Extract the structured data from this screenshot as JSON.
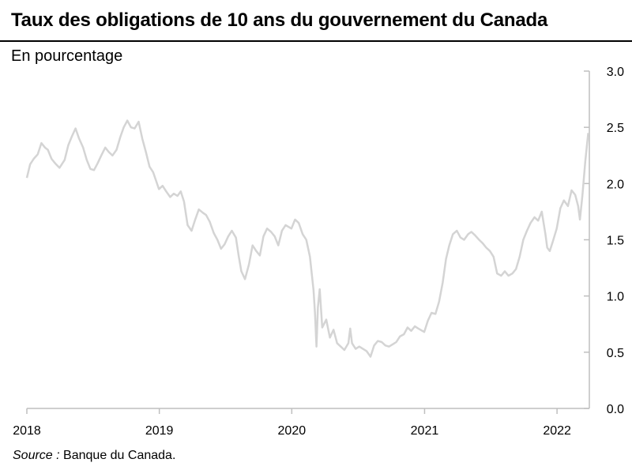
{
  "title": "Taux des obligations de 10 ans du gouvernement du Canada",
  "ylabel": "En pourcentage",
  "source_label": "Source :",
  "source_text": "Banque du Canada.",
  "colors": {
    "line": "#d4d4d4",
    "axis": "#bfbfbf",
    "text": "#000000"
  },
  "chart_data": {
    "type": "line",
    "title": "Taux des obligations de 10 ans du gouvernement du Canada",
    "ylabel": "En pourcentage",
    "xlabel": "",
    "x_ticks": [
      "2018",
      "2019",
      "2020",
      "2021",
      "2022"
    ],
    "y_ticks": [
      "3.0",
      "2.5",
      "2.0",
      "1.5",
      "1.0",
      "0.5",
      "0.0"
    ],
    "xlim": [
      "2018-01-01",
      "2022-03-31"
    ],
    "ylim": [
      0,
      3
    ],
    "y_axis_side": "right",
    "grid": false,
    "legend": "none",
    "series": [
      {
        "values": [
          [
            "2018-01-01",
            2.05
          ],
          [
            "2018-01-10",
            2.17
          ],
          [
            "2018-01-20",
            2.22
          ],
          [
            "2018-01-31",
            2.26
          ],
          [
            "2018-02-10",
            2.36
          ],
          [
            "2018-02-20",
            2.32
          ],
          [
            "2018-02-28",
            2.3
          ],
          [
            "2018-03-10",
            2.22
          ],
          [
            "2018-03-20",
            2.18
          ],
          [
            "2018-04-01",
            2.14
          ],
          [
            "2018-04-15",
            2.21
          ],
          [
            "2018-04-25",
            2.34
          ],
          [
            "2018-05-05",
            2.42
          ],
          [
            "2018-05-15",
            2.49
          ],
          [
            "2018-05-25",
            2.4
          ],
          [
            "2018-06-05",
            2.32
          ],
          [
            "2018-06-15",
            2.21
          ],
          [
            "2018-06-25",
            2.13
          ],
          [
            "2018-07-05",
            2.12
          ],
          [
            "2018-07-15",
            2.18
          ],
          [
            "2018-07-25",
            2.25
          ],
          [
            "2018-08-05",
            2.32
          ],
          [
            "2018-08-15",
            2.28
          ],
          [
            "2018-08-25",
            2.25
          ],
          [
            "2018-09-05",
            2.3
          ],
          [
            "2018-09-15",
            2.41
          ],
          [
            "2018-09-25",
            2.5
          ],
          [
            "2018-10-05",
            2.56
          ],
          [
            "2018-10-15",
            2.5
          ],
          [
            "2018-10-25",
            2.49
          ],
          [
            "2018-11-05",
            2.55
          ],
          [
            "2018-11-15",
            2.4
          ],
          [
            "2018-11-25",
            2.28
          ],
          [
            "2018-12-05",
            2.15
          ],
          [
            "2018-12-15",
            2.1
          ],
          [
            "2018-12-31",
            1.95
          ],
          [
            "2019-01-10",
            1.98
          ],
          [
            "2019-01-20",
            1.93
          ],
          [
            "2019-01-31",
            1.88
          ],
          [
            "2019-02-10",
            1.91
          ],
          [
            "2019-02-20",
            1.89
          ],
          [
            "2019-03-01",
            1.93
          ],
          [
            "2019-03-10",
            1.84
          ],
          [
            "2019-03-20",
            1.63
          ],
          [
            "2019-03-31",
            1.58
          ],
          [
            "2019-04-10",
            1.68
          ],
          [
            "2019-04-20",
            1.77
          ],
          [
            "2019-05-01",
            1.74
          ],
          [
            "2019-05-10",
            1.72
          ],
          [
            "2019-05-20",
            1.66
          ],
          [
            "2019-05-31",
            1.56
          ],
          [
            "2019-06-10",
            1.5
          ],
          [
            "2019-06-20",
            1.42
          ],
          [
            "2019-06-30",
            1.46
          ],
          [
            "2019-07-10",
            1.53
          ],
          [
            "2019-07-20",
            1.58
          ],
          [
            "2019-07-31",
            1.52
          ],
          [
            "2019-08-08",
            1.35
          ],
          [
            "2019-08-15",
            1.22
          ],
          [
            "2019-08-25",
            1.15
          ],
          [
            "2019-09-05",
            1.28
          ],
          [
            "2019-09-15",
            1.45
          ],
          [
            "2019-09-25",
            1.4
          ],
          [
            "2019-10-05",
            1.36
          ],
          [
            "2019-10-15",
            1.53
          ],
          [
            "2019-10-25",
            1.6
          ],
          [
            "2019-11-05",
            1.57
          ],
          [
            "2019-11-15",
            1.53
          ],
          [
            "2019-11-25",
            1.45
          ],
          [
            "2019-12-05",
            1.58
          ],
          [
            "2019-12-15",
            1.63
          ],
          [
            "2019-12-31",
            1.6
          ],
          [
            "2020-01-10",
            1.68
          ],
          [
            "2020-01-20",
            1.65
          ],
          [
            "2020-01-31",
            1.55
          ],
          [
            "2020-02-10",
            1.5
          ],
          [
            "2020-02-20",
            1.35
          ],
          [
            "2020-03-01",
            1.05
          ],
          [
            "2020-03-05",
            0.85
          ],
          [
            "2020-03-09",
            0.55
          ],
          [
            "2020-03-13",
            0.9
          ],
          [
            "2020-03-18",
            1.06
          ],
          [
            "2020-03-25",
            0.72
          ],
          [
            "2020-04-05",
            0.79
          ],
          [
            "2020-04-15",
            0.63
          ],
          [
            "2020-04-25",
            0.7
          ],
          [
            "2020-05-05",
            0.58
          ],
          [
            "2020-05-15",
            0.55
          ],
          [
            "2020-05-25",
            0.52
          ],
          [
            "2020-06-05",
            0.58
          ],
          [
            "2020-06-10",
            0.71
          ],
          [
            "2020-06-15",
            0.58
          ],
          [
            "2020-06-25",
            0.53
          ],
          [
            "2020-07-05",
            0.55
          ],
          [
            "2020-07-15",
            0.53
          ],
          [
            "2020-07-25",
            0.51
          ],
          [
            "2020-08-05",
            0.46
          ],
          [
            "2020-08-15",
            0.56
          ],
          [
            "2020-08-25",
            0.6
          ],
          [
            "2020-09-05",
            0.59
          ],
          [
            "2020-09-15",
            0.56
          ],
          [
            "2020-09-25",
            0.55
          ],
          [
            "2020-10-05",
            0.57
          ],
          [
            "2020-10-15",
            0.59
          ],
          [
            "2020-10-25",
            0.64
          ],
          [
            "2020-11-05",
            0.66
          ],
          [
            "2020-11-15",
            0.72
          ],
          [
            "2020-11-25",
            0.69
          ],
          [
            "2020-12-05",
            0.73
          ],
          [
            "2020-12-15",
            0.71
          ],
          [
            "2020-12-31",
            0.68
          ],
          [
            "2021-01-10",
            0.78
          ],
          [
            "2021-01-20",
            0.85
          ],
          [
            "2021-01-31",
            0.84
          ],
          [
            "2021-02-10",
            0.95
          ],
          [
            "2021-02-20",
            1.12
          ],
          [
            "2021-03-01",
            1.33
          ],
          [
            "2021-03-10",
            1.45
          ],
          [
            "2021-03-20",
            1.55
          ],
          [
            "2021-03-31",
            1.58
          ],
          [
            "2021-04-10",
            1.52
          ],
          [
            "2021-04-20",
            1.5
          ],
          [
            "2021-05-01",
            1.55
          ],
          [
            "2021-05-10",
            1.57
          ],
          [
            "2021-05-20",
            1.54
          ],
          [
            "2021-05-31",
            1.5
          ],
          [
            "2021-06-10",
            1.47
          ],
          [
            "2021-06-20",
            1.43
          ],
          [
            "2021-06-30",
            1.4
          ],
          [
            "2021-07-10",
            1.35
          ],
          [
            "2021-07-20",
            1.2
          ],
          [
            "2021-07-31",
            1.18
          ],
          [
            "2021-08-10",
            1.22
          ],
          [
            "2021-08-20",
            1.18
          ],
          [
            "2021-08-31",
            1.2
          ],
          [
            "2021-09-10",
            1.24
          ],
          [
            "2021-09-20",
            1.35
          ],
          [
            "2021-09-30",
            1.5
          ],
          [
            "2021-10-10",
            1.58
          ],
          [
            "2021-10-20",
            1.65
          ],
          [
            "2021-10-31",
            1.7
          ],
          [
            "2021-11-10",
            1.67
          ],
          [
            "2021-11-20",
            1.75
          ],
          [
            "2021-11-30",
            1.55
          ],
          [
            "2021-12-05",
            1.43
          ],
          [
            "2021-12-12",
            1.4
          ],
          [
            "2021-12-20",
            1.48
          ],
          [
            "2021-12-31",
            1.6
          ],
          [
            "2022-01-10",
            1.78
          ],
          [
            "2022-01-20",
            1.85
          ],
          [
            "2022-01-31",
            1.8
          ],
          [
            "2022-02-10",
            1.94
          ],
          [
            "2022-02-20",
            1.9
          ],
          [
            "2022-02-28",
            1.8
          ],
          [
            "2022-03-05",
            1.68
          ],
          [
            "2022-03-12",
            1.9
          ],
          [
            "2022-03-20",
            2.2
          ],
          [
            "2022-03-28",
            2.45
          ]
        ]
      }
    ]
  }
}
